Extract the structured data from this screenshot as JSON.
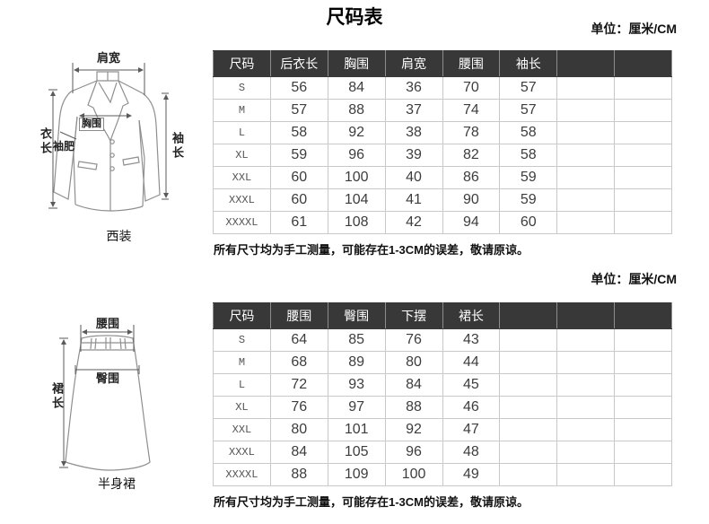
{
  "page": {
    "title": "尺码表"
  },
  "sections": [
    {
      "unit_label": "单位：厘米/CM",
      "figure": {
        "caption": "西装",
        "labels": {
          "shoulder_width": "肩宽",
          "chest": "胸围",
          "garment_length": "衣长",
          "sleeve_width": "袖肥",
          "sleeve_length": "袖长"
        }
      },
      "table": {
        "columns": [
          "尺码",
          "后衣长",
          "胸围",
          "肩宽",
          "腰围",
          "袖长",
          "",
          ""
        ],
        "rows": [
          [
            "S",
            "56",
            "84",
            "36",
            "70",
            "57",
            "",
            ""
          ],
          [
            "M",
            "57",
            "88",
            "37",
            "74",
            "57",
            "",
            ""
          ],
          [
            "L",
            "58",
            "92",
            "38",
            "78",
            "58",
            "",
            ""
          ],
          [
            "XL",
            "59",
            "96",
            "39",
            "82",
            "58",
            "",
            ""
          ],
          [
            "XXL",
            "60",
            "100",
            "40",
            "86",
            "59",
            "",
            ""
          ],
          [
            "XXXL",
            "60",
            "104",
            "41",
            "90",
            "59",
            "",
            ""
          ],
          [
            "XXXXL",
            "61",
            "108",
            "42",
            "94",
            "60",
            "",
            ""
          ]
        ]
      },
      "note": "所有尺寸均为手工测量，可能存在1-3CM的误差，敬请原谅。"
    },
    {
      "unit_label": "单位：厘米/CM",
      "figure": {
        "caption": "半身裙",
        "labels": {
          "waist": "腰围",
          "hip": "臀围",
          "skirt_length": "裙长"
        }
      },
      "table": {
        "columns": [
          "尺码",
          "腰围",
          "臀围",
          "下摆",
          "裙长",
          "",
          "",
          ""
        ],
        "rows": [
          [
            "S",
            "64",
            "85",
            "76",
            "43",
            "",
            "",
            ""
          ],
          [
            "M",
            "68",
            "89",
            "80",
            "44",
            "",
            "",
            ""
          ],
          [
            "L",
            "72",
            "93",
            "84",
            "45",
            "",
            "",
            ""
          ],
          [
            "XL",
            "76",
            "97",
            "88",
            "46",
            "",
            "",
            ""
          ],
          [
            "XXL",
            "80",
            "101",
            "92",
            "47",
            "",
            "",
            ""
          ],
          [
            "XXXL",
            "84",
            "105",
            "96",
            "48",
            "",
            "",
            ""
          ],
          [
            "XXXXL",
            "88",
            "109",
            "100",
            "49",
            "",
            "",
            ""
          ]
        ]
      },
      "note": "所有尺寸均为手工测量，可能存在1-3CM的误差，敬请原谅。"
    }
  ],
  "colors": {
    "header_bg": "#383838",
    "header_text": "#ffffff",
    "grid_line": "#c9c9c9",
    "outer_border": "#4d4d4d",
    "number_text": "#3d3d3d",
    "garment_line": "#8f8f8f",
    "measure_line": "#5a5a5a"
  }
}
